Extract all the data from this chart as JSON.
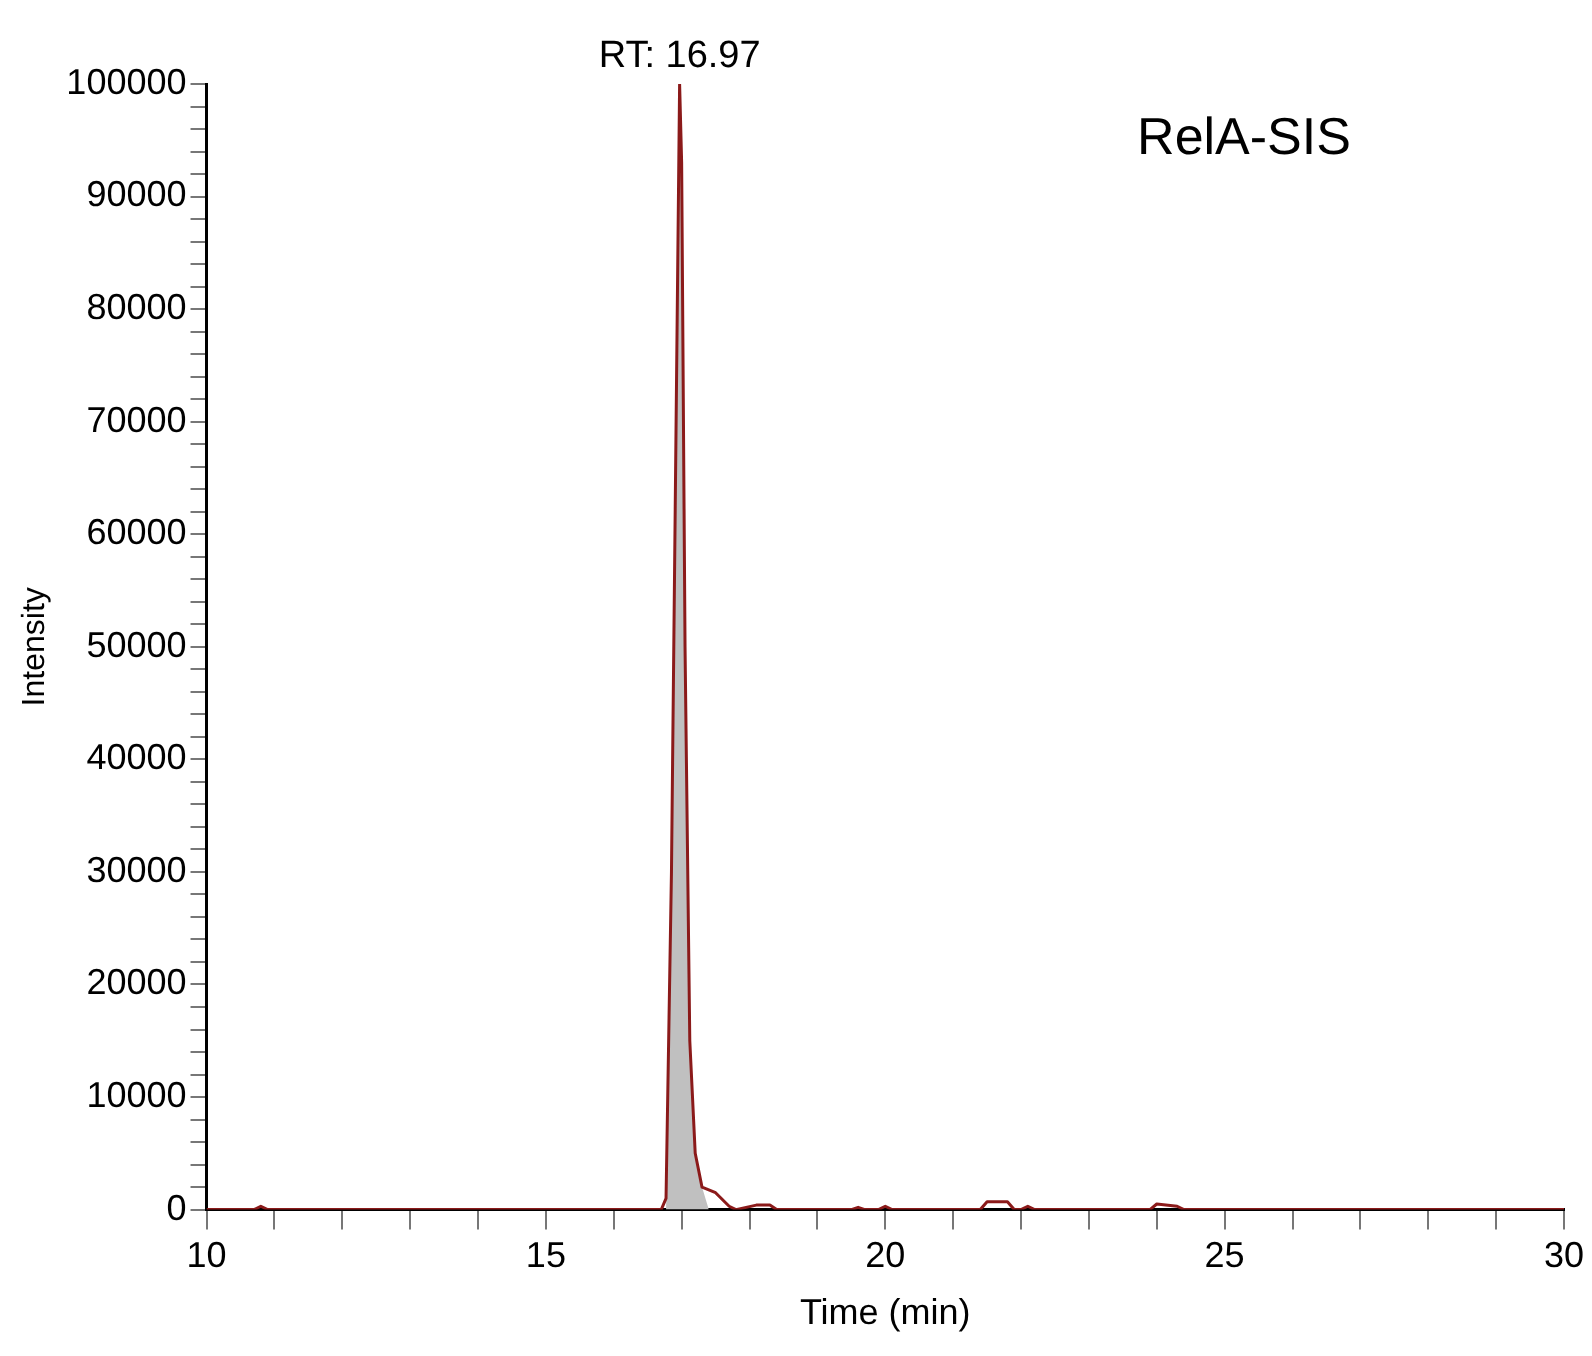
{
  "chart_data": {
    "type": "line",
    "xlabel": "Time (min)",
    "ylabel": "Intensity",
    "annotations": [
      {
        "text": "RT: 16.97",
        "x": 16.97,
        "y": 100000
      },
      "RelA-SIS"
    ],
    "xlim": [
      10,
      30
    ],
    "xticks": [
      10,
      {
        "value": 11,
        "label": null
      },
      {
        "value": 12,
        "label": null
      },
      {
        "value": 13,
        "label": null
      },
      {
        "value": 14,
        "label": null
      },
      15,
      {
        "value": 16,
        "label": null
      },
      {
        "value": 17,
        "label": null
      },
      {
        "value": 18,
        "label": null
      },
      {
        "value": 19,
        "label": null
      },
      20,
      {
        "value": 21,
        "label": null
      },
      {
        "value": 22,
        "label": null
      },
      {
        "value": 23,
        "label": null
      },
      {
        "value": 24,
        "label": null
      },
      25,
      {
        "value": 26,
        "label": null
      },
      {
        "value": 27,
        "label": null
      },
      {
        "value": 28,
        "label": null
      },
      {
        "value": 29,
        "label": null
      },
      30
    ],
    "ylim": [
      0,
      100000
    ],
    "yticks": [
      0,
      {
        "value": 2000,
        "label": null
      },
      {
        "value": 4000,
        "label": null
      },
      {
        "value": 6000,
        "label": null
      },
      {
        "value": 8000,
        "label": null
      },
      10000,
      {
        "value": 12000,
        "label": null
      },
      {
        "value": 14000,
        "label": null
      },
      {
        "value": 16000,
        "label": null
      },
      {
        "value": 18000,
        "label": null
      },
      20000,
      {
        "value": 22000,
        "label": null
      },
      {
        "value": 24000,
        "label": null
      },
      {
        "value": 26000,
        "label": null
      },
      {
        "value": 28000,
        "label": null
      },
      30000,
      {
        "value": 32000,
        "label": null
      },
      {
        "value": 34000,
        "label": null
      },
      {
        "value": 36000,
        "label": null
      },
      {
        "value": 38000,
        "label": null
      },
      40000,
      {
        "value": 42000,
        "label": null
      },
      {
        "value": 44000,
        "label": null
      },
      {
        "value": 46000,
        "label": null
      },
      {
        "value": 48000,
        "label": null
      },
      50000,
      {
        "value": 52000,
        "label": null
      },
      {
        "value": 54000,
        "label": null
      },
      {
        "value": 56000,
        "label": null
      },
      {
        "value": 58000,
        "label": null
      },
      60000,
      {
        "value": 62000,
        "label": null
      },
      {
        "value": 64000,
        "label": null
      },
      {
        "value": 66000,
        "label": null
      },
      {
        "value": 68000,
        "label": null
      },
      70000,
      {
        "value": 72000,
        "label": null
      },
      {
        "value": 74000,
        "label": null
      },
      {
        "value": 76000,
        "label": null
      },
      {
        "value": 78000,
        "label": null
      },
      80000,
      {
        "value": 82000,
        "label": null
      },
      {
        "value": 84000,
        "label": null
      },
      {
        "value": 86000,
        "label": null
      },
      {
        "value": 88000,
        "label": null
      },
      90000,
      {
        "value": 92000,
        "label": null
      },
      {
        "value": 94000,
        "label": null
      },
      {
        "value": 96000,
        "label": null
      },
      {
        "value": 98000,
        "label": null
      },
      100000
    ],
    "grid": false,
    "legend": false,
    "marker": "none",
    "line_style": "solid",
    "series": [
      {
        "type": "area",
        "color": "#c0c0c0",
        "x": [
          16.77,
          16.85,
          16.97,
          17.0,
          17.05,
          17.12,
          17.2,
          17.3,
          17.4
        ],
        "values": [
          0,
          30000,
          100000,
          93000,
          50000,
          15000,
          5000,
          2000,
          0
        ]
      },
      {
        "type": "line",
        "color": "#8b1a1a",
        "x": [
          10,
          10.7,
          10.8,
          10.9,
          16.7,
          16.77,
          16.85,
          16.97,
          17.0,
          17.05,
          17.12,
          17.2,
          17.3,
          17.5,
          17.7,
          17.8,
          18.1,
          18.3,
          18.4,
          19.5,
          19.6,
          19.7,
          19.9,
          20.0,
          20.1,
          21.4,
          21.5,
          21.8,
          21.9,
          22.0,
          22.1,
          22.2,
          23.9,
          24.0,
          24.3,
          24.4,
          30
        ],
        "values": [
          0,
          0,
          300,
          0,
          0,
          1000,
          30000,
          100000,
          93000,
          50000,
          15000,
          5000,
          2000,
          1500,
          300,
          0,
          400,
          400,
          0,
          0,
          200,
          0,
          0,
          300,
          0,
          0,
          700,
          700,
          0,
          0,
          300,
          0,
          0,
          500,
          300,
          0,
          0
        ]
      }
    ]
  }
}
